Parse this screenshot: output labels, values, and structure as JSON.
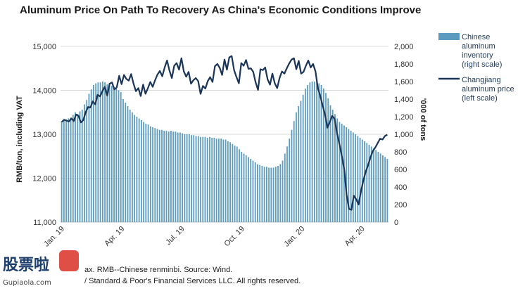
{
  "chart_data": {
    "type": "bar",
    "title": "Aluminum Price On Path To Recovery As China's Economic Conditions Improve",
    "ylabel_left": "RMB/ton, including VAT",
    "ylabel_right": "'000 of tons",
    "xlabel": "",
    "ylim_left": [
      11000,
      15000
    ],
    "ylim_right": [
      0,
      2000
    ],
    "left_ticks": [
      "11,000",
      "12,000",
      "13,000",
      "14,000",
      "15,000"
    ],
    "left_tick_values": [
      11000,
      12000,
      13000,
      14000,
      15000
    ],
    "right_ticks": [
      "0",
      "200",
      "400",
      "600",
      "800",
      "1,000",
      "1,200",
      "1,400",
      "1,600",
      "1,800",
      "2,000"
    ],
    "right_tick_values": [
      0,
      200,
      400,
      600,
      800,
      1000,
      1200,
      1400,
      1600,
      1800,
      2000
    ],
    "x_ticks": [
      "Jan. 19",
      "Apr. 19",
      "Jul. 19",
      "Oct. 19",
      "Jan. 20",
      "Apr. 20"
    ],
    "x_tick_weeks": [
      0,
      13,
      26,
      39,
      52,
      65
    ],
    "grid": true,
    "legend_position": "right",
    "series": [
      {
        "name": "Chinese aluminum inventory (right scale)",
        "type": "bar",
        "axis": "right",
        "color": "#5b9bbf",
        "values": [
          1150,
          1160,
          1170,
          1180,
          1190,
          1220,
          1250,
          1230,
          1260,
          1280,
          1340,
          1390,
          1460,
          1510,
          1560,
          1580,
          1590,
          1590,
          1600,
          1590,
          1570,
          1560,
          1550,
          1540,
          1520,
          1500,
          1480,
          1400,
          1360,
          1320,
          1280,
          1250,
          1220,
          1200,
          1180,
          1160,
          1140,
          1120,
          1110,
          1090,
          1080,
          1070,
          1060,
          1050,
          1050,
          1040,
          1040,
          1030,
          1040,
          1030,
          1030,
          1020,
          1020,
          1010,
          1000,
          1000,
          1000,
          990,
          990,
          980,
          980,
          970,
          970,
          970,
          960,
          970,
          960,
          960,
          950,
          950,
          950,
          940,
          940,
          920,
          910,
          890,
          870,
          860,
          830,
          800,
          780,
          760,
          740,
          720,
          700,
          680,
          660,
          650,
          640,
          630,
          630,
          620,
          620,
          620,
          630,
          640,
          660,
          700,
          780,
          860,
          950,
          1050,
          1150,
          1250,
          1320,
          1380,
          1450,
          1520,
          1560,
          1590,
          1600,
          1600,
          1590,
          1580,
          1560,
          1520,
          1470,
          1410,
          1330,
          1280,
          1230,
          1180,
          1140,
          1120,
          1100,
          1080,
          1060,
          1040,
          1020,
          1000,
          980,
          960,
          940,
          920,
          900,
          880,
          860,
          840,
          820,
          800,
          780,
          760,
          740,
          720
        ]
      },
      {
        "name": "Changjiang aluminum price (left scale)",
        "type": "line",
        "axis": "left",
        "color": "#1a3557",
        "values": [
          13280,
          13330,
          13310,
          13290,
          13360,
          13300,
          13450,
          13420,
          13270,
          13320,
          13500,
          13620,
          13610,
          13750,
          13680,
          13900,
          13860,
          13980,
          14080,
          13880,
          14150,
          14180,
          14020,
          14070,
          14330,
          14140,
          14350,
          14260,
          14220,
          14370,
          14150,
          13980,
          14050,
          13870,
          14130,
          13920,
          14050,
          14190,
          14080,
          14230,
          14360,
          14440,
          14320,
          14520,
          14680,
          14450,
          14280,
          14560,
          14620,
          14470,
          14730,
          14430,
          14310,
          14420,
          14150,
          14230,
          14280,
          14210,
          13920,
          14100,
          14040,
          14210,
          14300,
          14190,
          14550,
          14600,
          14510,
          14350,
          14700,
          14470,
          14750,
          14780,
          14460,
          14300,
          14160,
          14620,
          14560,
          14690,
          14490,
          14500,
          14420,
          14180,
          14010,
          14480,
          14460,
          14520,
          14250,
          14130,
          14380,
          14160,
          14050,
          14280,
          14430,
          14380,
          14500,
          14610,
          14700,
          14730,
          14480,
          14670,
          14380,
          14420,
          14560,
          14680,
          14520,
          14600,
          14430,
          14050,
          13870,
          13650,
          13450,
          13150,
          13280,
          13420,
          13350,
          13020,
          12780,
          12510,
          12200,
          11620,
          11300,
          11280,
          11600,
          11520,
          11400,
          11700,
          11950,
          12150,
          12300,
          12480,
          12620,
          12700,
          12800,
          12900,
          12880,
          12960,
          12990
        ]
      }
    ]
  },
  "footnote_line1": "ax. RMB--Chinese renminbi. Source: Wind.",
  "footnote_line2": "/ Standard & Poor's Financial Services LLC. All rights reserved.",
  "watermark": {
    "text": "股票啦",
    "subtext": "Gupiaola.com"
  }
}
